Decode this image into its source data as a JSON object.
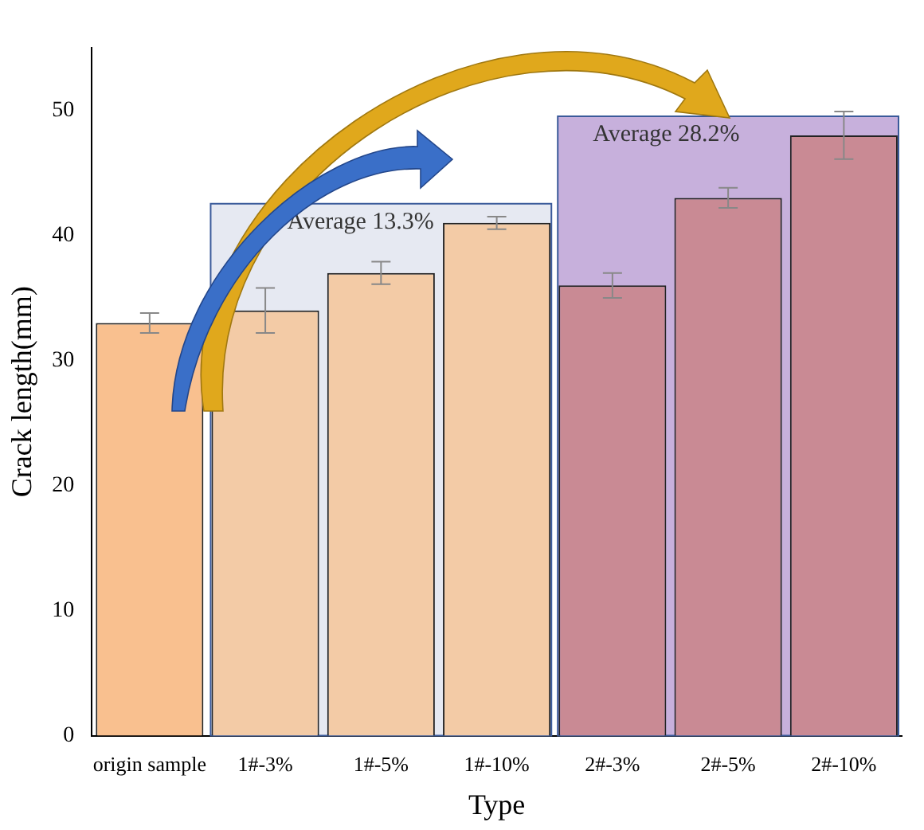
{
  "chart_data": {
    "type": "bar",
    "xlabel": "Type",
    "ylabel": "Crack length(mm)",
    "categories": [
      "origin sample",
      "1#-3%",
      "1#-5%",
      "1#-10%",
      "2#-3%",
      "2#-5%",
      "2#-10%"
    ],
    "values": [
      33,
      34,
      37,
      41,
      36,
      43,
      48
    ],
    "colors": [
      "#f9c08f",
      "#f3cba6",
      "#f3cba6",
      "#f3cba6",
      "#c98a94",
      "#c98a94",
      "#c98a94"
    ],
    "errors": [
      0.8,
      1.8,
      0.9,
      0.5,
      1,
      0.8,
      1.9
    ],
    "ylim": [
      0,
      55
    ],
    "yticks": [
      0,
      10,
      20,
      30,
      40,
      50
    ],
    "bands": [
      {
        "axis": "x",
        "from": "1#-3%",
        "to": "1#-10%",
        "label": "Average 13.3%",
        "color": "#e6e9f2"
      },
      {
        "axis": "x",
        "from": "2#-3%",
        "to": "2#-10%",
        "label": "Average 28.2%",
        "color": "#c7b0dc"
      }
    ],
    "grid": false,
    "legend": false
  }
}
